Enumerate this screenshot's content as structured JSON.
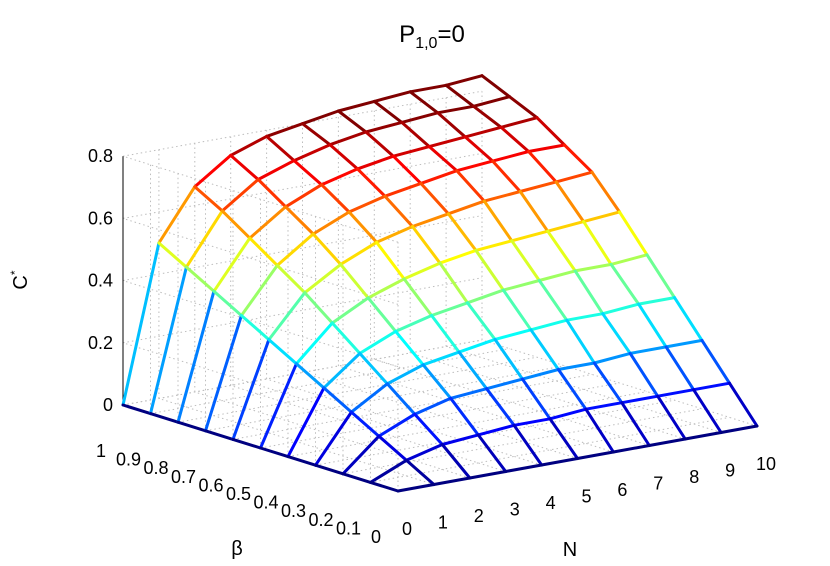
{
  "chart_data": {
    "type": "surface",
    "title_main": "P",
    "title_sub": "1,0",
    "title_tail": "=0",
    "xlabel": "N",
    "ylabel": "β",
    "zlabel_main": "C",
    "zlabel_sup": "*",
    "N": [
      0,
      1,
      2,
      3,
      4,
      5,
      6,
      7,
      8,
      9,
      10
    ],
    "beta": [
      0,
      0.1,
      0.2,
      0.3,
      0.4,
      0.5,
      0.6,
      0.7,
      0.8,
      0.9,
      1
    ],
    "xlim": [
      0,
      10
    ],
    "ylim": [
      0,
      1
    ],
    "zlim": [
      0,
      0.8
    ],
    "xticks": [
      "0",
      "1",
      "2",
      "3",
      "4",
      "5",
      "6",
      "7",
      "8",
      "9",
      "10"
    ],
    "yticks": [
      "0",
      "0.1",
      "0.2",
      "0.3",
      "0.4",
      "0.5",
      "0.6",
      "0.7",
      "0.8",
      "0.9",
      "1"
    ],
    "zticks": [
      "0",
      "0.2",
      "0.4",
      "0.6",
      "0.8"
    ],
    "colormap": "jet",
    "grid": true,
    "values": [
      [
        0.0,
        0.0,
        0.0,
        0.0,
        0.0,
        0.0,
        0.0,
        0.0,
        0.0,
        0.0,
        0.0
      ],
      [
        0.0,
        0.05,
        0.08,
        0.09,
        0.1,
        0.1,
        0.11,
        0.11,
        0.11,
        0.11,
        0.11
      ],
      [
        0.0,
        0.1,
        0.15,
        0.18,
        0.19,
        0.2,
        0.21,
        0.21,
        0.22,
        0.22,
        0.22
      ],
      [
        0.0,
        0.15,
        0.22,
        0.26,
        0.28,
        0.3,
        0.31,
        0.32,
        0.32,
        0.33,
        0.33
      ],
      [
        0.0,
        0.2,
        0.29,
        0.34,
        0.37,
        0.39,
        0.41,
        0.42,
        0.43,
        0.43,
        0.44
      ],
      [
        0.0,
        0.25,
        0.36,
        0.42,
        0.46,
        0.49,
        0.51,
        0.52,
        0.53,
        0.54,
        0.55
      ],
      [
        0.0,
        0.3,
        0.43,
        0.5,
        0.55,
        0.58,
        0.6,
        0.62,
        0.63,
        0.64,
        0.65
      ],
      [
        0.0,
        0.35,
        0.49,
        0.57,
        0.62,
        0.65,
        0.67,
        0.69,
        0.7,
        0.71,
        0.71
      ],
      [
        0.0,
        0.4,
        0.55,
        0.63,
        0.68,
        0.71,
        0.73,
        0.74,
        0.75,
        0.76,
        0.77
      ],
      [
        0.0,
        0.45,
        0.61,
        0.69,
        0.73,
        0.76,
        0.78,
        0.79,
        0.8,
        0.8,
        0.81
      ],
      [
        0.0,
        0.5,
        0.66,
        0.74,
        0.78,
        0.8,
        0.82,
        0.83,
        0.84,
        0.84,
        0.85
      ]
    ]
  }
}
